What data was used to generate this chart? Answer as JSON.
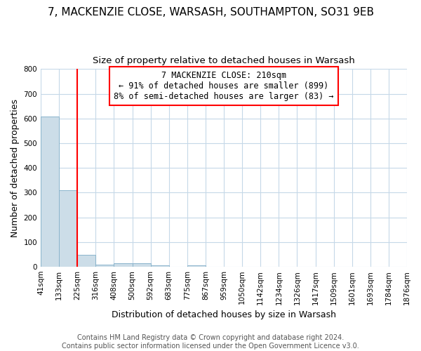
{
  "title_line1": "7, MACKENZIE CLOSE, WARSASH, SOUTHAMPTON, SO31 9EB",
  "title_line2": "Size of property relative to detached houses in Warsash",
  "xlabel": "Distribution of detached houses by size in Warsash",
  "ylabel": "Number of detached properties",
  "bin_labels": [
    "41sqm",
    "133sqm",
    "225sqm",
    "316sqm",
    "408sqm",
    "500sqm",
    "592sqm",
    "683sqm",
    "775sqm",
    "867sqm",
    "959sqm",
    "1050sqm",
    "1142sqm",
    "1234sqm",
    "1326sqm",
    "1417sqm",
    "1509sqm",
    "1601sqm",
    "1693sqm",
    "1784sqm",
    "1876sqm"
  ],
  "bar_heights": [
    607,
    311,
    48,
    10,
    13,
    13,
    5,
    0,
    7,
    0,
    0,
    0,
    0,
    0,
    0,
    0,
    0,
    0,
    0,
    0,
    0
  ],
  "bar_color": "#ccdde8",
  "bar_edge_color": "#8ab4cc",
  "property_line_x": 2,
  "annotation_line1": "7 MACKENZIE CLOSE: 210sqm",
  "annotation_line2": "← 91% of detached houses are smaller (899)",
  "annotation_line3": "8% of semi-detached houses are larger (83) →",
  "annotation_box_color": "white",
  "annotation_box_edge_color": "red",
  "vline_color": "red",
  "ylim": [
    0,
    800
  ],
  "yticks": [
    0,
    100,
    200,
    300,
    400,
    500,
    600,
    700,
    800
  ],
  "footer_line1": "Contains HM Land Registry data © Crown copyright and database right 2024.",
  "footer_line2": "Contains public sector information licensed under the Open Government Licence v3.0.",
  "bg_color": "#ffffff",
  "grid_color": "#c5d8e8",
  "title_fontsize": 11,
  "subtitle_fontsize": 9.5,
  "ylabel_fontsize": 9,
  "xlabel_fontsize": 9,
  "tick_fontsize": 7.5,
  "annotation_fontsize": 8.5,
  "footer_fontsize": 7
}
